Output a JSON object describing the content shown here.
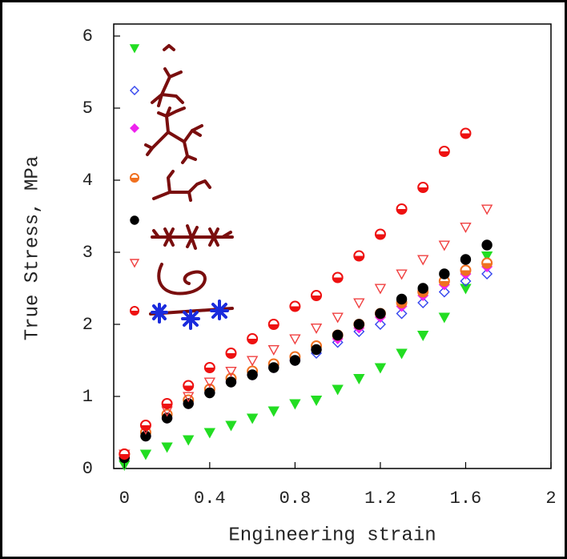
{
  "chart_data": {
    "type": "scatter",
    "xlabel": "Engineering strain",
    "ylabel": "True Stress, MPa",
    "x": [
      0,
      0.1,
      0.2,
      0.3,
      0.4,
      0.5,
      0.6,
      0.7,
      0.8,
      0.9,
      1.0,
      1.1,
      1.2,
      1.3,
      1.4,
      1.5,
      1.6,
      1.7
    ],
    "xlim": [
      -0.05,
      2
    ],
    "ylim": [
      0,
      6
    ],
    "xticks": [
      0,
      0.4,
      0.8,
      1.2,
      1.6,
      2
    ],
    "yticks": [
      0,
      1,
      2,
      3,
      4,
      5,
      6
    ],
    "grid": false,
    "legend": "upper left",
    "series": [
      {
        "color": "#22dd22",
        "marker": "triangle-down",
        "filled": true,
        "values": [
          0.05,
          0.2,
          0.3,
          0.4,
          0.5,
          0.6,
          0.7,
          0.8,
          0.9,
          0.95,
          1.1,
          1.25,
          1.4,
          1.6,
          1.85,
          2.1,
          2.5,
          2.95
        ]
      },
      {
        "color": "#3344ee",
        "marker": "diamond",
        "filled": false,
        "values": [
          0.15,
          0.45,
          0.7,
          0.9,
          1.05,
          1.2,
          1.3,
          1.4,
          1.5,
          1.6,
          1.75,
          1.9,
          2.0,
          2.15,
          2.3,
          2.45,
          2.6,
          2.7
        ]
      },
      {
        "color": "#ee22ee",
        "marker": "diamond",
        "filled": true,
        "values": [
          0.15,
          0.45,
          0.7,
          0.9,
          1.1,
          1.2,
          1.3,
          1.4,
          1.5,
          1.65,
          1.8,
          1.95,
          2.1,
          2.25,
          2.4,
          2.55,
          2.7,
          2.8
        ]
      },
      {
        "color": "#f07020",
        "marker": "half-circle",
        "filled": false,
        "values": [
          0.2,
          0.5,
          0.75,
          0.95,
          1.1,
          1.25,
          1.35,
          1.45,
          1.55,
          1.7,
          1.85,
          2.0,
          2.15,
          2.3,
          2.45,
          2.6,
          2.75,
          2.85
        ]
      },
      {
        "color": "#000000",
        "marker": "circle",
        "filled": true,
        "values": [
          0.15,
          0.45,
          0.7,
          0.9,
          1.05,
          1.2,
          1.3,
          1.4,
          1.5,
          1.65,
          1.85,
          2.0,
          2.15,
          2.35,
          2.5,
          2.7,
          2.9,
          3.1
        ]
      },
      {
        "color": "#f04040",
        "marker": "triangle-down",
        "filled": false,
        "values": [
          0.2,
          0.55,
          0.8,
          1.0,
          1.2,
          1.35,
          1.5,
          1.65,
          1.8,
          1.95,
          2.1,
          2.3,
          2.5,
          2.7,
          2.9,
          3.1,
          3.35,
          3.6
        ]
      },
      {
        "color": "#ee1111",
        "marker": "half-circle",
        "filled": false,
        "values": [
          0.2,
          0.6,
          0.9,
          1.15,
          1.4,
          1.6,
          1.8,
          2.0,
          2.25,
          2.4,
          2.65,
          2.95,
          3.25,
          3.6,
          3.9,
          4.4,
          4.65,
          null
        ]
      }
    ]
  }
}
